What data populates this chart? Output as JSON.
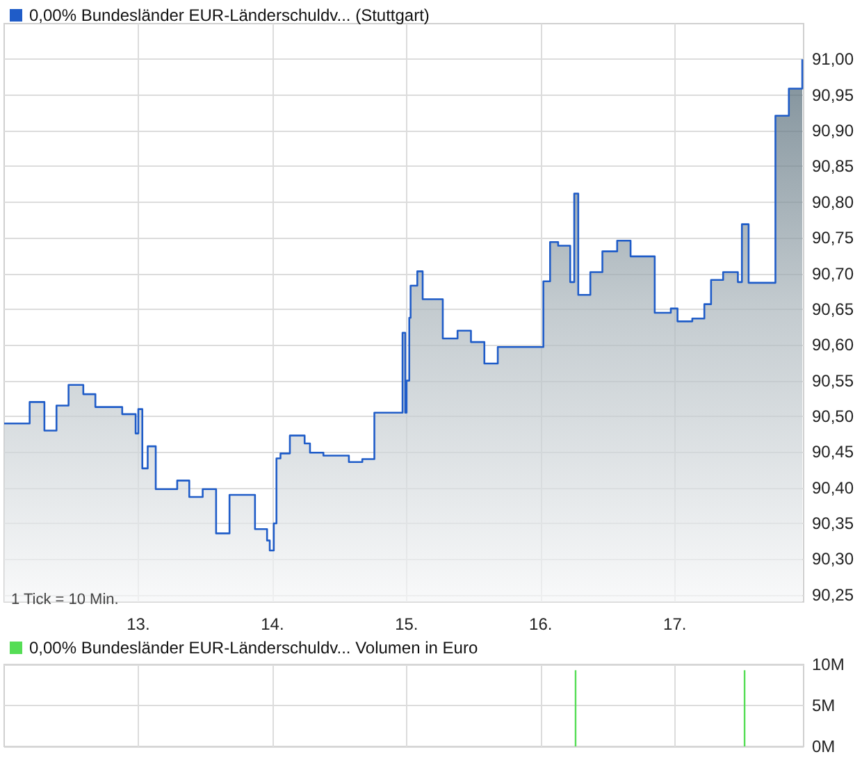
{
  "chart_data": [
    {
      "type": "area",
      "legend": "top left",
      "grid": true,
      "marker": "none",
      "xlim": [
        12,
        17.96
      ],
      "xticks": [
        {
          "value": 13,
          "label": "13."
        },
        {
          "value": 14,
          "label": "14."
        },
        {
          "value": 15,
          "label": "15."
        },
        {
          "value": 16,
          "label": "16."
        },
        {
          "value": 17,
          "label": "17."
        }
      ],
      "ylim": [
        90.24,
        91.05
      ],
      "yticks": [
        {
          "value": 90.25,
          "label": "90,25"
        },
        {
          "value": 90.3,
          "label": "90,30"
        },
        {
          "value": 90.35,
          "label": "90,35"
        },
        {
          "value": 90.4,
          "label": "90,40"
        },
        {
          "value": 90.45,
          "label": "90,45"
        },
        {
          "value": 90.5,
          "label": "90,50"
        },
        {
          "value": 90.55,
          "label": "90,55"
        },
        {
          "value": 90.6,
          "label": "90,60"
        },
        {
          "value": 90.65,
          "label": "90,65"
        },
        {
          "value": 90.7,
          "label": "90,70"
        },
        {
          "value": 90.75,
          "label": "90,75"
        },
        {
          "value": 90.8,
          "label": "90,80"
        },
        {
          "value": 90.85,
          "label": "90,85"
        },
        {
          "value": 90.9,
          "label": "90,90"
        },
        {
          "value": 90.95,
          "label": "90,95"
        },
        {
          "value": 91.0,
          "label": "91,00"
        }
      ],
      "annotations": [
        "1 Tick = 10 Min."
      ],
      "series": [
        {
          "name": "0,00% Bundesländer EUR-Länderschuldv... (Stuttgart)",
          "color": "#1f5cc8",
          "x": [
            12.0,
            12.19,
            12.19,
            12.3,
            12.3,
            12.39,
            12.39,
            12.48,
            12.48,
            12.59,
            12.59,
            12.68,
            12.68,
            12.88,
            12.88,
            12.98,
            12.98,
            13.0,
            13.0,
            13.03,
            13.03,
            13.07,
            13.07,
            13.13,
            13.13,
            13.29,
            13.29,
            13.38,
            13.38,
            13.48,
            13.48,
            13.58,
            13.58,
            13.68,
            13.68,
            13.87,
            13.87,
            13.96,
            13.96,
            13.98,
            13.98,
            14.01,
            14.01,
            14.03,
            14.03,
            14.06,
            14.06,
            14.13,
            14.13,
            14.24,
            14.24,
            14.28,
            14.28,
            14.38,
            14.38,
            14.57,
            14.57,
            14.67,
            14.67,
            14.76,
            14.76,
            14.97,
            14.97,
            14.99,
            14.99,
            15.0,
            15.0,
            15.02,
            15.02,
            15.03,
            15.03,
            15.08,
            15.08,
            15.12,
            15.12,
            15.27,
            15.27,
            15.38,
            15.38,
            15.48,
            15.48,
            15.58,
            15.58,
            15.68,
            15.68,
            16.02,
            16.02,
            16.07,
            16.07,
            16.13,
            16.13,
            16.22,
            16.22,
            16.25,
            16.25,
            16.28,
            16.28,
            16.37,
            16.37,
            16.46,
            16.46,
            16.57,
            16.57,
            16.67,
            16.67,
            16.85,
            16.85,
            16.97,
            16.97,
            17.02,
            17.02,
            17.13,
            17.13,
            17.22,
            17.22,
            17.27,
            17.27,
            17.36,
            17.36,
            17.47,
            17.47,
            17.5,
            17.5,
            17.55,
            17.55,
            17.75,
            17.75,
            17.85,
            17.85,
            17.95,
            17.95
          ],
          "values": [
            90.49,
            90.49,
            90.52,
            90.52,
            90.48,
            90.48,
            90.515,
            90.515,
            90.544,
            90.544,
            90.531,
            90.531,
            90.513,
            90.513,
            90.503,
            90.503,
            90.476,
            90.476,
            90.51,
            90.51,
            90.427,
            90.427,
            90.458,
            90.458,
            90.398,
            90.398,
            90.41,
            90.41,
            90.387,
            90.387,
            90.398,
            90.398,
            90.336,
            90.336,
            90.39,
            90.39,
            90.342,
            90.342,
            90.326,
            90.326,
            90.312,
            90.312,
            90.35,
            90.35,
            90.441,
            90.441,
            90.448,
            90.448,
            90.473,
            90.473,
            90.462,
            90.462,
            90.449,
            90.449,
            90.445,
            90.445,
            90.436,
            90.436,
            90.44,
            90.44,
            90.505,
            90.505,
            90.617,
            90.617,
            90.505,
            90.505,
            90.55,
            90.55,
            90.638,
            90.638,
            90.683,
            90.683,
            90.703,
            90.703,
            90.664,
            90.664,
            90.609,
            90.609,
            90.62,
            90.62,
            90.604,
            90.604,
            90.574,
            90.574,
            90.597,
            90.597,
            90.689,
            90.689,
            90.744,
            90.744,
            90.739,
            90.739,
            90.688,
            90.688,
            90.812,
            90.812,
            90.67,
            90.67,
            90.702,
            90.702,
            90.731,
            90.731,
            90.746,
            90.746,
            90.724,
            90.724,
            90.645,
            90.645,
            90.651,
            90.651,
            90.633,
            90.633,
            90.637,
            90.637,
            90.657,
            90.657,
            90.691,
            90.691,
            90.702,
            90.702,
            90.688,
            90.688,
            90.769,
            90.769,
            90.687,
            90.687,
            90.921,
            90.921,
            90.959,
            90.959,
            91.0
          ]
        }
      ]
    },
    {
      "type": "bar",
      "legend": "top left",
      "grid": true,
      "tick_labels": "y",
      "xlim": [
        12,
        17.96
      ],
      "xticks": [
        13,
        14,
        15,
        16,
        17
      ],
      "ylim": [
        0,
        10
      ],
      "yticks": [
        {
          "value": 0,
          "label": "0M"
        },
        {
          "value": 5,
          "label": "5M"
        },
        {
          "value": 10,
          "label": "10M"
        }
      ],
      "series": [
        {
          "name": "0,00% Bundesländer EUR-Länderschuldv... Volumen in Euro",
          "color": "#55dd55",
          "x": [
            16.26,
            17.52
          ],
          "values": [
            9.3,
            9.3
          ]
        }
      ]
    }
  ]
}
